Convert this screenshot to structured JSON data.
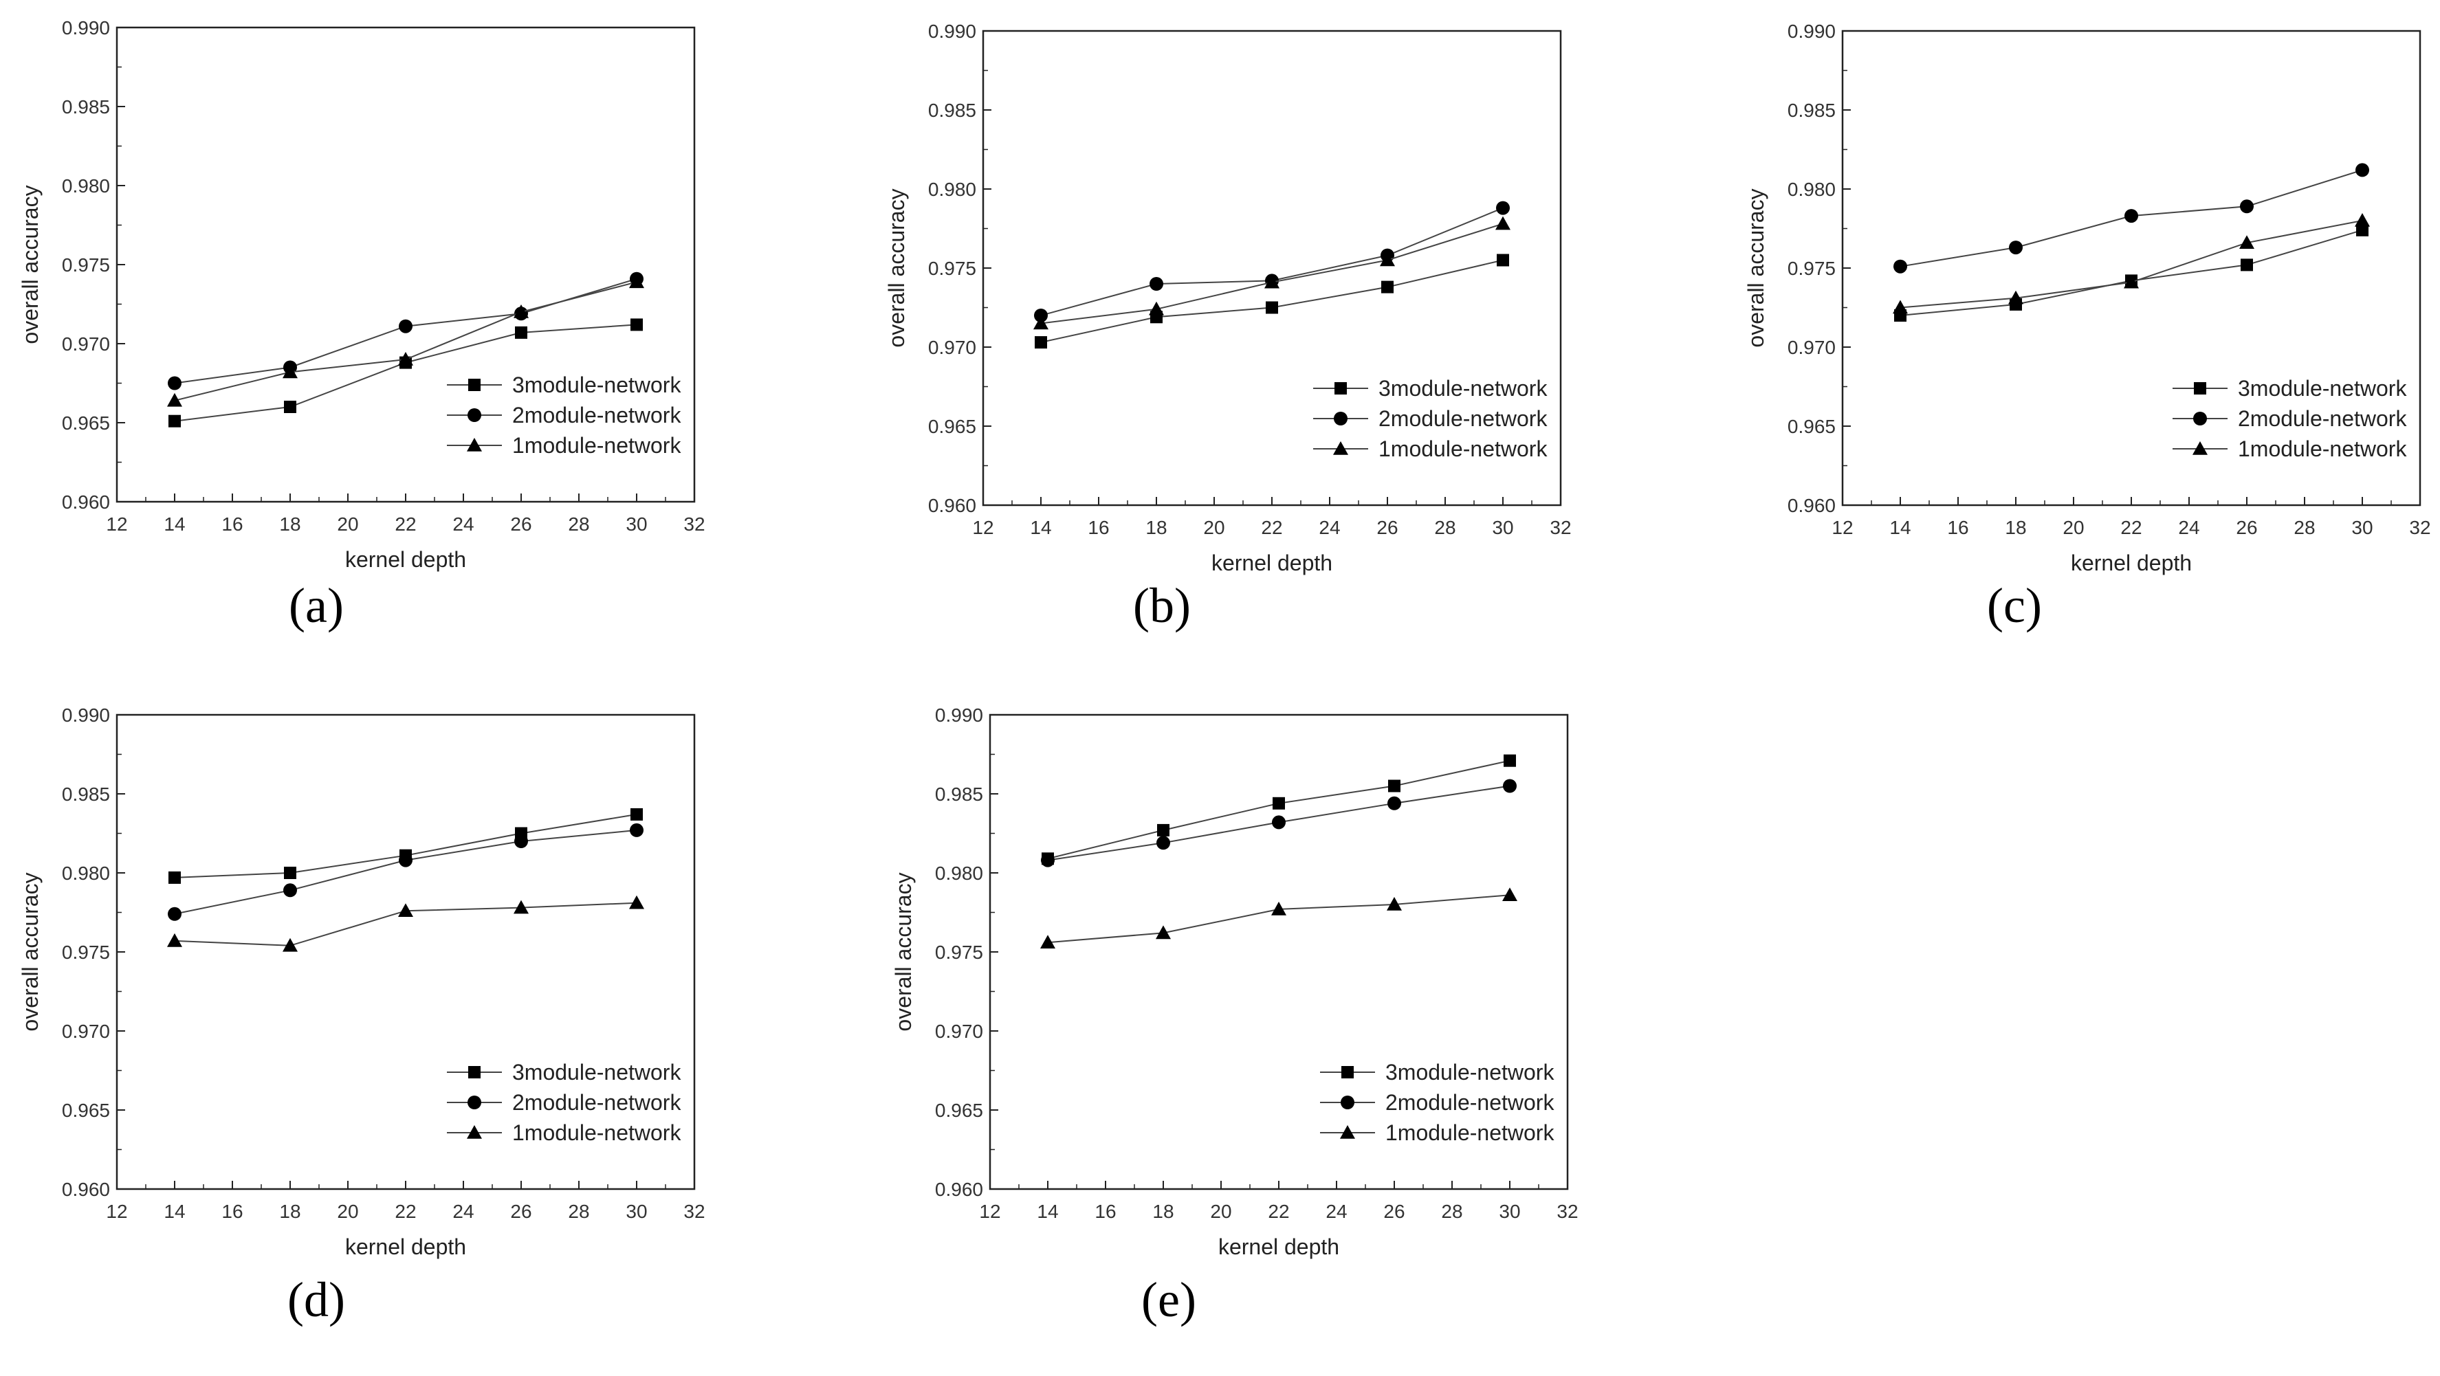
{
  "chart_data": [
    {
      "type": "line",
      "panel_label": "(a)",
      "xlabel": "kernel depth",
      "ylabel": "overall accuracy",
      "xlim": [
        12,
        32
      ],
      "ylim": [
        0.96,
        0.99
      ],
      "x_ticks": [
        "12",
        "14",
        "16",
        "18",
        "20",
        "22",
        "24",
        "26",
        "28",
        "30",
        "32"
      ],
      "y_ticks": [
        "0.960",
        "0.965",
        "0.970",
        "0.975",
        "0.980",
        "0.985",
        "0.990"
      ],
      "x": [
        14,
        18,
        22,
        26,
        30
      ],
      "legend": "lower-right",
      "grid": false,
      "series": [
        {
          "name": "3module-network",
          "marker": "square",
          "values": [
            0.9651,
            0.966,
            0.9688,
            0.9707,
            0.9712
          ]
        },
        {
          "name": "2module-network",
          "marker": "circle",
          "values": [
            0.9675,
            0.9685,
            0.9711,
            0.9719,
            0.9741
          ]
        },
        {
          "name": "1module-network",
          "marker": "triangle",
          "values": [
            0.9664,
            0.9682,
            0.969,
            0.972,
            0.9739
          ]
        }
      ]
    },
    {
      "type": "line",
      "panel_label": "(b)",
      "xlabel": "kernel depth",
      "ylabel": "overall accuracy",
      "xlim": [
        12,
        32
      ],
      "ylim": [
        0.96,
        0.99
      ],
      "x_ticks": [
        "12",
        "14",
        "16",
        "18",
        "20",
        "22",
        "24",
        "26",
        "28",
        "30",
        "32"
      ],
      "y_ticks": [
        "0.960",
        "0.965",
        "0.970",
        "0.975",
        "0.980",
        "0.985",
        "0.990"
      ],
      "x": [
        14,
        18,
        22,
        26,
        30
      ],
      "legend": "lower-right",
      "grid": false,
      "series": [
        {
          "name": "3module-network",
          "marker": "square",
          "values": [
            0.9703,
            0.9719,
            0.9725,
            0.9738,
            0.9755
          ]
        },
        {
          "name": "2module-network",
          "marker": "circle",
          "values": [
            0.972,
            0.974,
            0.9742,
            0.9758,
            0.9788
          ]
        },
        {
          "name": "1module-network",
          "marker": "triangle",
          "values": [
            0.9715,
            0.9724,
            0.9741,
            0.9755,
            0.9778
          ]
        }
      ]
    },
    {
      "type": "line",
      "panel_label": "(c)",
      "xlabel": "kernel depth",
      "ylabel": "overall accuracy",
      "xlim": [
        12,
        32
      ],
      "ylim": [
        0.96,
        0.99
      ],
      "x_ticks": [
        "12",
        "14",
        "16",
        "18",
        "20",
        "22",
        "24",
        "26",
        "28",
        "30",
        "32"
      ],
      "y_ticks": [
        "0.960",
        "0.965",
        "0.970",
        "0.975",
        "0.980",
        "0.985",
        "0.990"
      ],
      "x": [
        14,
        18,
        22,
        26,
        30
      ],
      "legend": "lower-right",
      "grid": false,
      "series": [
        {
          "name": "3module-network",
          "marker": "square",
          "values": [
            0.972,
            0.9727,
            0.9742,
            0.9752,
            0.9774
          ]
        },
        {
          "name": "2module-network",
          "marker": "circle",
          "values": [
            0.9751,
            0.9763,
            0.9783,
            0.9789,
            0.9812
          ]
        },
        {
          "name": "1module-network",
          "marker": "triangle",
          "values": [
            0.9725,
            0.9731,
            0.9741,
            0.9766,
            0.978
          ]
        }
      ]
    },
    {
      "type": "line",
      "panel_label": "(d)",
      "xlabel": "kernel depth",
      "ylabel": "overall accuracy",
      "xlim": [
        12,
        32
      ],
      "ylim": [
        0.96,
        0.99
      ],
      "x_ticks": [
        "12",
        "14",
        "16",
        "18",
        "20",
        "22",
        "24",
        "26",
        "28",
        "30",
        "32"
      ],
      "y_ticks": [
        "0.960",
        "0.965",
        "0.970",
        "0.975",
        "0.980",
        "0.985",
        "0.990"
      ],
      "x": [
        14,
        18,
        22,
        26,
        30
      ],
      "legend": "lower-right",
      "grid": false,
      "series": [
        {
          "name": "3module-network",
          "marker": "square",
          "values": [
            0.9797,
            0.98,
            0.9811,
            0.9825,
            0.9837
          ]
        },
        {
          "name": "2module-network",
          "marker": "circle",
          "values": [
            0.9774,
            0.9789,
            0.9808,
            0.982,
            0.9827
          ]
        },
        {
          "name": "1module-network",
          "marker": "triangle",
          "values": [
            0.9757,
            0.9754,
            0.9776,
            0.9778,
            0.9781
          ]
        }
      ]
    },
    {
      "type": "line",
      "panel_label": "(e)",
      "xlabel": "kernel depth",
      "ylabel": "overall accuracy",
      "xlim": [
        12,
        32
      ],
      "ylim": [
        0.96,
        0.99
      ],
      "x_ticks": [
        "12",
        "14",
        "16",
        "18",
        "20",
        "22",
        "24",
        "26",
        "28",
        "30",
        "32"
      ],
      "y_ticks": [
        "0.960",
        "0.965",
        "0.970",
        "0.975",
        "0.980",
        "0.985",
        "0.990"
      ],
      "x": [
        14,
        18,
        22,
        26,
        30
      ],
      "legend": "lower-right",
      "grid": false,
      "series": [
        {
          "name": "3module-network",
          "marker": "square",
          "values": [
            0.9809,
            0.9827,
            0.9844,
            0.9855,
            0.9871
          ]
        },
        {
          "name": "2module-network",
          "marker": "circle",
          "values": [
            0.9808,
            0.9819,
            0.9832,
            0.9844,
            0.9855
          ]
        },
        {
          "name": "1module-network",
          "marker": "triangle",
          "values": [
            0.9756,
            0.9762,
            0.9777,
            0.978,
            0.9786
          ]
        }
      ]
    }
  ]
}
